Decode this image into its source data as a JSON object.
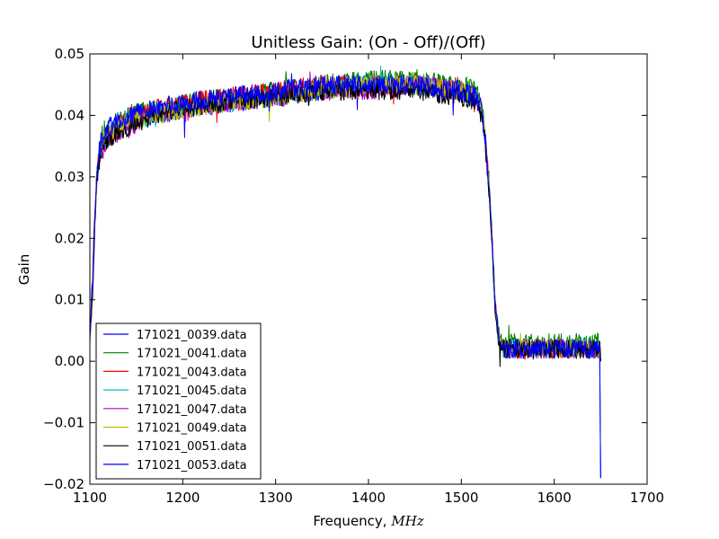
{
  "chart_data": {
    "type": "line",
    "title": "Unitless Gain: (On - Off)/(Off)",
    "xlabel": "Frequency, ",
    "xlabel_unit": "MHz",
    "ylabel": "Gain",
    "xlim": [
      1100,
      1700
    ],
    "ylim": [
      -0.02,
      0.05
    ],
    "x_ticks": [
      1100,
      1200,
      1300,
      1400,
      1500,
      1600,
      1700
    ],
    "y_ticks": [
      -0.02,
      -0.01,
      0.0,
      0.01,
      0.02,
      0.03,
      0.04,
      0.05
    ],
    "x_tick_labels": [
      "1100",
      "1200",
      "1300",
      "1400",
      "1500",
      "1600",
      "1700"
    ],
    "y_tick_labels": [
      "−0.02",
      "−0.01",
      "0.00",
      "0.01",
      "0.02",
      "0.03",
      "0.04",
      "0.05"
    ],
    "grid": false,
    "legend_position": "lower-left",
    "x": [
      1100,
      1103,
      1105,
      1108,
      1112,
      1120,
      1140,
      1170,
      1200,
      1250,
      1300,
      1350,
      1400,
      1450,
      1500,
      1515,
      1522,
      1526,
      1530,
      1533,
      1536,
      1540,
      1545,
      1550,
      1600,
      1649,
      1650
    ],
    "series": [
      {
        "name": "171021_0039.data",
        "color": "#0000ff",
        "values": [
          0.004,
          0.012,
          0.022,
          0.031,
          0.035,
          0.037,
          0.039,
          0.04,
          0.041,
          0.042,
          0.043,
          0.044,
          0.045,
          0.045,
          0.044,
          0.043,
          0.041,
          0.036,
          0.028,
          0.02,
          0.01,
          0.004,
          0.002,
          0.002,
          0.002,
          0.002,
          -0.019
        ]
      },
      {
        "name": "171021_0041.data",
        "color": "#008000",
        "values": [
          0.005,
          0.013,
          0.023,
          0.032,
          0.036,
          0.038,
          0.04,
          0.041,
          0.042,
          0.043,
          0.044,
          0.045,
          0.046,
          0.046,
          0.045,
          0.044,
          0.042,
          0.037,
          0.029,
          0.021,
          0.011,
          0.005,
          0.003,
          0.003,
          0.003,
          0.003,
          0.001
        ]
      },
      {
        "name": "171021_0043.data",
        "color": "#ff0000",
        "values": [
          0.004,
          0.012,
          0.022,
          0.031,
          0.035,
          0.037,
          0.039,
          0.041,
          0.042,
          0.043,
          0.044,
          0.045,
          0.045,
          0.045,
          0.044,
          0.043,
          0.041,
          0.036,
          0.028,
          0.02,
          0.01,
          0.004,
          0.002,
          0.002,
          0.002,
          0.002,
          0.0
        ]
      },
      {
        "name": "171021_0045.data",
        "color": "#00bfbf",
        "values": [
          0.005,
          0.012,
          0.022,
          0.031,
          0.035,
          0.037,
          0.039,
          0.04,
          0.041,
          0.042,
          0.043,
          0.044,
          0.045,
          0.045,
          0.044,
          0.043,
          0.041,
          0.036,
          0.028,
          0.02,
          0.01,
          0.004,
          0.002,
          0.002,
          0.002,
          0.002,
          0.0
        ]
      },
      {
        "name": "171021_0047.data",
        "color": "#bf00bf",
        "values": [
          0.004,
          0.011,
          0.021,
          0.03,
          0.034,
          0.036,
          0.038,
          0.04,
          0.041,
          0.042,
          0.043,
          0.044,
          0.044,
          0.045,
          0.044,
          0.043,
          0.041,
          0.036,
          0.028,
          0.02,
          0.01,
          0.004,
          0.002,
          0.002,
          0.002,
          0.002,
          0.0
        ]
      },
      {
        "name": "171021_0049.data",
        "color": "#bfbf00",
        "values": [
          0.005,
          0.012,
          0.022,
          0.031,
          0.035,
          0.037,
          0.039,
          0.04,
          0.041,
          0.042,
          0.043,
          0.044,
          0.045,
          0.045,
          0.044,
          0.043,
          0.041,
          0.036,
          0.028,
          0.02,
          0.01,
          0.004,
          0.002,
          0.002,
          0.002,
          0.002,
          0.001
        ]
      },
      {
        "name": "171021_0051.data",
        "color": "#000000",
        "values": [
          0.004,
          0.012,
          0.021,
          0.03,
          0.034,
          0.036,
          0.038,
          0.04,
          0.041,
          0.042,
          0.043,
          0.044,
          0.044,
          0.044,
          0.043,
          0.042,
          0.04,
          0.035,
          0.027,
          0.019,
          0.009,
          0.003,
          0.002,
          0.002,
          0.002,
          0.002,
          0.0
        ]
      },
      {
        "name": "171021_0053.data",
        "color": "#0000ff",
        "values": [
          0.005,
          0.013,
          0.023,
          0.032,
          0.036,
          0.038,
          0.04,
          0.041,
          0.042,
          0.043,
          0.044,
          0.045,
          0.045,
          0.045,
          0.044,
          0.043,
          0.041,
          0.036,
          0.028,
          0.02,
          0.01,
          0.004,
          0.002,
          0.002,
          0.002,
          0.002,
          -0.019
        ]
      }
    ]
  }
}
